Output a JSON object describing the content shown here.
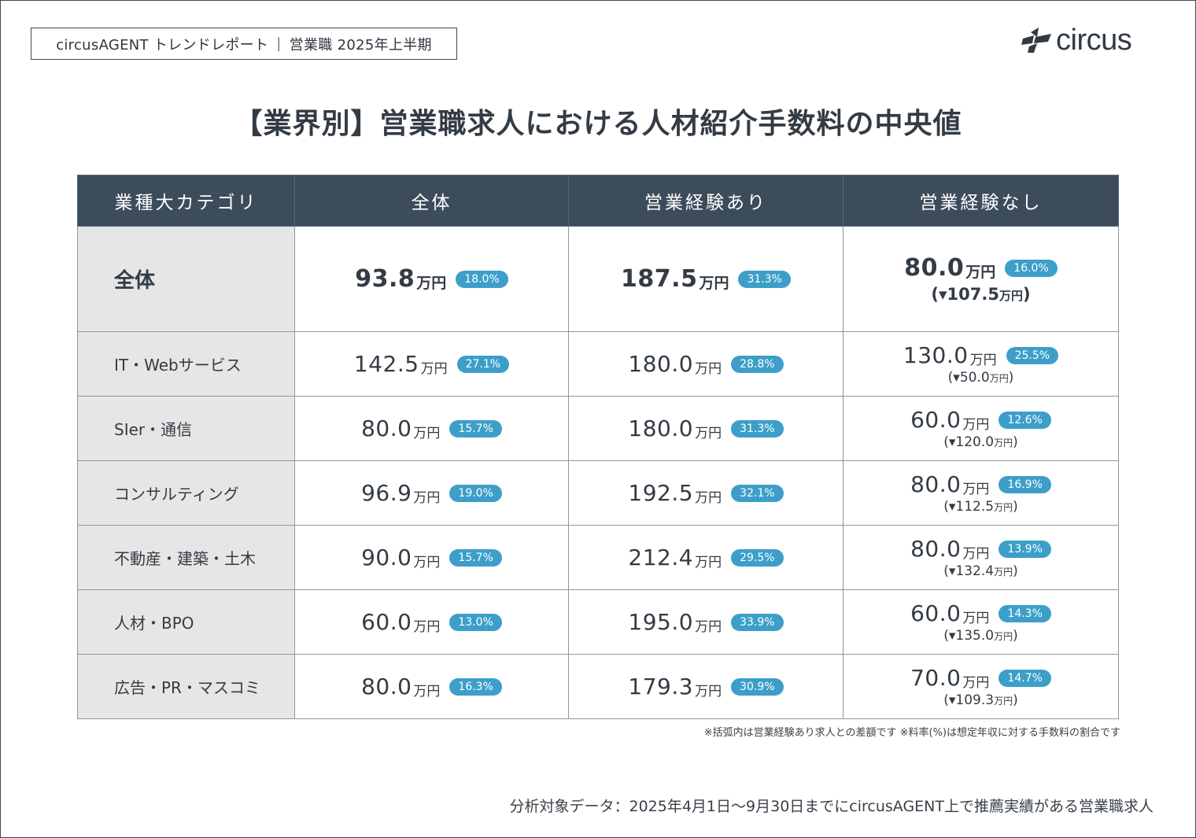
{
  "header": {
    "report_name": "circusAGENT トレンドレポート",
    "period": "営業職 2025年上半期",
    "logo_text": "circus",
    "logo_icon": "circus-logo-icon"
  },
  "title": "【業界別】営業職求人における人材紹介手数料の中央値",
  "table": {
    "columns": [
      "業種大カテゴリ",
      "全体",
      "営業経験あり",
      "営業経験なし"
    ],
    "unit": "万円",
    "rows": [
      {
        "category": "全体",
        "total": {
          "value": "93.8",
          "pct": "18.0%"
        },
        "experienced": {
          "value": "187.5",
          "pct": "31.3%"
        },
        "inexperienced": {
          "value": "80.0",
          "pct": "16.0%",
          "diff_open": "(▾107.5",
          "diff_close": ")"
        }
      },
      {
        "category": "IT・Webサービス",
        "total": {
          "value": "142.5",
          "pct": "27.1%"
        },
        "experienced": {
          "value": "180.0",
          "pct": "28.8%"
        },
        "inexperienced": {
          "value": "130.0",
          "pct": "25.5%",
          "diff_open": "(▾50.0",
          "diff_close": ")"
        }
      },
      {
        "category": "SIer・通信",
        "total": {
          "value": "80.0",
          "pct": "15.7%"
        },
        "experienced": {
          "value": "180.0",
          "pct": "31.3%"
        },
        "inexperienced": {
          "value": "60.0",
          "pct": "12.6%",
          "diff_open": "(▾120.0",
          "diff_close": ")"
        }
      },
      {
        "category": "コンサルティング",
        "total": {
          "value": "96.9",
          "pct": "19.0%"
        },
        "experienced": {
          "value": "192.5",
          "pct": "32.1%"
        },
        "inexperienced": {
          "value": "80.0",
          "pct": "16.9%",
          "diff_open": "(▾112.5",
          "diff_close": ")"
        }
      },
      {
        "category": "不動産・建築・土木",
        "total": {
          "value": "90.0",
          "pct": "15.7%"
        },
        "experienced": {
          "value": "212.4",
          "pct": "29.5%"
        },
        "inexperienced": {
          "value": "80.0",
          "pct": "13.9%",
          "diff_open": "(▾132.4",
          "diff_close": ")"
        }
      },
      {
        "category": "人材・BPO",
        "total": {
          "value": "60.0",
          "pct": "13.0%"
        },
        "experienced": {
          "value": "195.0",
          "pct": "33.9%"
        },
        "inexperienced": {
          "value": "60.0",
          "pct": "14.3%",
          "diff_open": "(▾135.0",
          "diff_close": ")"
        }
      },
      {
        "category": "広告・PR・マスコミ",
        "total": {
          "value": "80.0",
          "pct": "16.3%"
        },
        "experienced": {
          "value": "179.3",
          "pct": "30.9%"
        },
        "inexperienced": {
          "value": "70.0",
          "pct": "14.7%",
          "diff_open": "(▾109.3",
          "diff_close": ")"
        }
      }
    ]
  },
  "footnote": "※括弧内は営業経験あり求人との差額です ※料率(%)は想定年収に対する手数料の割合です",
  "source": "分析対象データ：2025年4月1日〜9月30日までにcircusAGENT上で推薦実績がある営業職求人",
  "colors": {
    "header_bg": "#3d4c5b",
    "badge": "#3d9fc9",
    "category_bg": "#e6e6e6",
    "text": "#333b44"
  }
}
